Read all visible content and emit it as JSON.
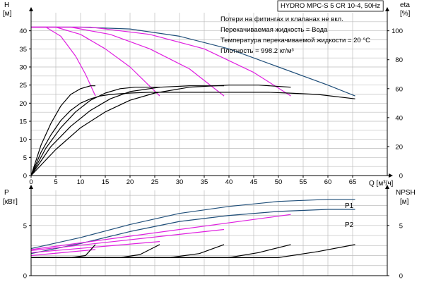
{
  "chart_data": [
    {
      "type": "line",
      "title": "HYDRO MPC-S 5 CR 10-4, 50Hz",
      "notes": [
        "Потери на фитингах и клапанах не вкл.",
        "Перекачиваемая жидкость = Вода",
        "Температура перекачиваемой жидкости = 20 °C",
        "Плотность = 998.2 кг/м³"
      ],
      "x_label": "Q [м³/ч]",
      "y_label_left": "H",
      "y_unit_left": "[м]",
      "y_label_right": "eta",
      "y_unit_right": "[%]",
      "xlim": [
        0,
        72
      ],
      "x_ticks": [
        0,
        5,
        10,
        15,
        20,
        25,
        30,
        35,
        40,
        45,
        50,
        55,
        60,
        65
      ],
      "ylim_left": [
        0,
        45
      ],
      "y_ticks_left": [
        0,
        5,
        10,
        15,
        20,
        25,
        30,
        35,
        40
      ],
      "ylim_right": [
        0,
        112.5
      ],
      "y_ticks_right": [
        0,
        20,
        40,
        60,
        80,
        100
      ],
      "grid": true,
      "series": [
        {
          "group": "head_max",
          "color": "#1f4e79",
          "x": [
            0,
            10,
            20,
            30,
            40,
            50,
            60,
            65.5
          ],
          "y": [
            41,
            41,
            40.5,
            38.5,
            35,
            30,
            25,
            22
          ]
        },
        {
          "group": "head_reduced",
          "color": "#e020e0",
          "x": [
            0,
            3,
            6,
            9,
            11,
            13
          ],
          "y": [
            41,
            41,
            38.5,
            33,
            28,
            22
          ]
        },
        {
          "group": "head_reduced",
          "color": "#e020e0",
          "x": [
            0,
            5,
            10,
            15,
            20,
            26
          ],
          "y": [
            41,
            41,
            39,
            35,
            30,
            22
          ]
        },
        {
          "group": "head_reduced",
          "color": "#e020e0",
          "x": [
            0,
            8,
            16,
            24,
            32,
            39
          ],
          "y": [
            41,
            41,
            39,
            35,
            29.5,
            22
          ]
        },
        {
          "group": "head_reduced",
          "color": "#e020e0",
          "x": [
            0,
            12,
            24,
            35,
            45,
            52.5
          ],
          "y": [
            41,
            41,
            39,
            35,
            28.5,
            22
          ]
        },
        {
          "group": "efficiency",
          "color": "#000000",
          "x": [
            0,
            2,
            4,
            6,
            8,
            10,
            12,
            14,
            16,
            18,
            20,
            24,
            28,
            33,
            38,
            43,
            48,
            52,
            58,
            65.5
          ],
          "y": [
            0,
            16,
            28,
            38,
            45,
            50,
            53,
            55,
            56,
            56.5,
            57,
            57.5,
            57.5,
            57.5,
            57.5,
            57.5,
            57.5,
            57,
            56,
            53
          ]
        },
        {
          "group": "efficiency",
          "color": "#000000",
          "x": [
            0,
            2,
            4,
            6,
            8,
            10,
            12,
            13
          ],
          "y": [
            0,
            21,
            36,
            48,
            56,
            60,
            62,
            62
          ]
        },
        {
          "group": "efficiency",
          "color": "#000000",
          "x": [
            0,
            3,
            6,
            9,
            12,
            15,
            18,
            21,
            26
          ],
          "y": [
            0,
            19,
            33,
            44,
            52,
            57,
            60,
            61,
            61
          ]
        },
        {
          "group": "efficiency",
          "color": "#000000",
          "x": [
            0,
            4,
            8,
            12,
            16,
            20,
            26,
            32,
            39
          ],
          "y": [
            0,
            20,
            34,
            45,
            53,
            58,
            61,
            62,
            62
          ]
        },
        {
          "group": "efficiency",
          "color": "#000000",
          "x": [
            0,
            5,
            10,
            15,
            20,
            25,
            32,
            40,
            46,
            52.5
          ],
          "y": [
            0,
            18,
            33,
            44,
            52,
            57,
            61,
            62.5,
            62.5,
            61
          ]
        }
      ]
    },
    {
      "type": "line",
      "y_label_left": "P",
      "y_unit_left": "[кВт]",
      "y_label_right": "NPSH",
      "y_unit_right": "[м]",
      "xlim": [
        0,
        72
      ],
      "ylim_left": [
        0,
        8.5
      ],
      "y_ticks_left": [
        0,
        5
      ],
      "ylim_right": [
        0,
        8.5
      ],
      "y_ticks_right": [
        0,
        5
      ],
      "grid": true,
      "series": [
        {
          "name": "P1",
          "group": "power",
          "color": "#1f4e79",
          "x": [
            0,
            10,
            20,
            30,
            40,
            50,
            60,
            65.5
          ],
          "y": [
            2.7,
            3.8,
            5.1,
            6.2,
            6.9,
            7.4,
            7.6,
            7.6
          ]
        },
        {
          "name": "P2",
          "group": "power",
          "color": "#1f4e79",
          "x": [
            0,
            10,
            20,
            30,
            40,
            50,
            60,
            65.5
          ],
          "y": [
            2.2,
            3.2,
            4.4,
            5.4,
            6.0,
            6.4,
            6.6,
            6.6
          ]
        },
        {
          "group": "power",
          "color": "#e020e0",
          "x": [
            0,
            13
          ],
          "y": [
            2.0,
            2.6
          ]
        },
        {
          "group": "power",
          "color": "#e020e0",
          "x": [
            0,
            26
          ],
          "y": [
            2.3,
            3.4
          ]
        },
        {
          "group": "power",
          "color": "#e020e0",
          "x": [
            0,
            39
          ],
          "y": [
            2.5,
            4.6
          ]
        },
        {
          "group": "power",
          "color": "#e020e0",
          "x": [
            0,
            52.5
          ],
          "y": [
            2.6,
            6.1
          ]
        },
        {
          "group": "npsh",
          "color": "#000000",
          "x": [
            0,
            8,
            11,
            13
          ],
          "y": [
            1.8,
            1.8,
            2.0,
            3.1
          ]
        },
        {
          "group": "npsh",
          "color": "#000000",
          "x": [
            0,
            18,
            22,
            26
          ],
          "y": [
            1.8,
            1.8,
            2.1,
            3.1
          ]
        },
        {
          "group": "npsh",
          "color": "#000000",
          "x": [
            0,
            28,
            34,
            39
          ],
          "y": [
            1.8,
            1.8,
            2.2,
            3.1
          ]
        },
        {
          "group": "npsh",
          "color": "#000000",
          "x": [
            0,
            40,
            46,
            52.5
          ],
          "y": [
            1.8,
            1.8,
            2.3,
            3.1
          ]
        },
        {
          "group": "npsh",
          "color": "#000000",
          "x": [
            0,
            50,
            58,
            65.5
          ],
          "y": [
            1.8,
            1.8,
            2.4,
            3.1
          ]
        }
      ]
    }
  ]
}
